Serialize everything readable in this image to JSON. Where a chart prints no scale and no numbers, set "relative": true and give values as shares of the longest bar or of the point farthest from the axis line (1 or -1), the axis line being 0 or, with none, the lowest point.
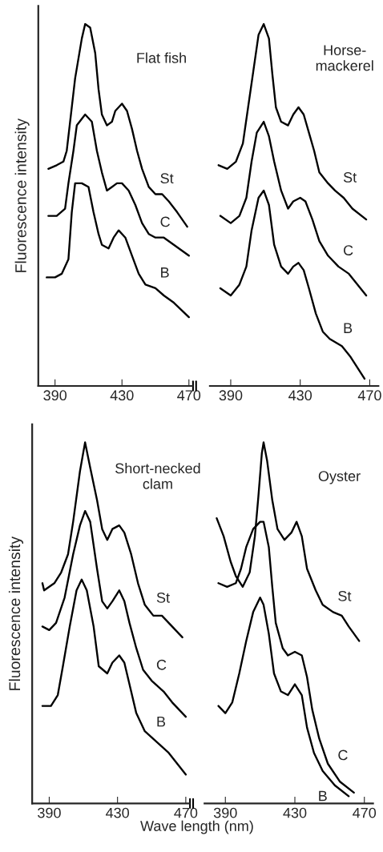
{
  "chart_data": [
    {
      "type": "line",
      "relative": true,
      "title": "Flat fish",
      "ylabel": "Fluorescence intensity",
      "xlim": [
        380,
        472
      ],
      "xticks": [
        390,
        430,
        470
      ],
      "tick_labels": "x",
      "grid": false,
      "legend": false,
      "marker": "none",
      "line_style": "solid",
      "series": [
        {
          "name": "St",
          "color": "#000000",
          "x": [
            386,
            391,
            395,
            397,
            399,
            402,
            406,
            408,
            411,
            414,
            416,
            418,
            421,
            424,
            426,
            430,
            433,
            436,
            439,
            442,
            446,
            450,
            454,
            458,
            463,
            469
          ],
          "values": [
            0.6,
            0.61,
            0.62,
            0.65,
            0.73,
            0.85,
            0.96,
            1.0,
            0.99,
            0.92,
            0.82,
            0.75,
            0.72,
            0.73,
            0.76,
            0.78,
            0.76,
            0.71,
            0.65,
            0.6,
            0.55,
            0.53,
            0.53,
            0.51,
            0.48,
            0.44
          ]
        },
        {
          "name": "C",
          "color": "#000000",
          "x": [
            386,
            391,
            396,
            398,
            401,
            403,
            408,
            412,
            415,
            418,
            421,
            424,
            427,
            430,
            434,
            438,
            442,
            446,
            450,
            455,
            461,
            470
          ],
          "values": [
            0.47,
            0.47,
            0.49,
            0.56,
            0.65,
            0.72,
            0.75,
            0.73,
            0.65,
            0.59,
            0.54,
            0.55,
            0.56,
            0.56,
            0.54,
            0.5,
            0.45,
            0.42,
            0.41,
            0.41,
            0.39,
            0.36
          ]
        },
        {
          "name": "B",
          "color": "#000000",
          "x": [
            385,
            390,
            394,
            398,
            400,
            402,
            406,
            410,
            413,
            416,
            418,
            422,
            425,
            428,
            432,
            436,
            440,
            444,
            450,
            455,
            461,
            470
          ],
          "values": [
            0.3,
            0.3,
            0.31,
            0.35,
            0.48,
            0.56,
            0.56,
            0.55,
            0.48,
            0.42,
            0.39,
            0.38,
            0.41,
            0.43,
            0.41,
            0.36,
            0.31,
            0.28,
            0.27,
            0.25,
            0.23,
            0.19
          ]
        }
      ]
    },
    {
      "type": "line",
      "relative": true,
      "title": "Horse-\nmackerel",
      "xlim": [
        378,
        475
      ],
      "xticks": [
        390,
        430,
        470
      ],
      "tick_labels": "x",
      "grid": false,
      "legend": false,
      "marker": "none",
      "line_style": "solid",
      "series": [
        {
          "name": "St",
          "color": "#000000",
          "x": [
            383,
            388,
            393,
            397,
            400,
            403,
            406,
            409,
            412,
            414,
            416,
            419,
            423,
            426,
            429,
            432,
            435,
            438,
            441,
            446,
            450,
            455,
            460,
            468
          ],
          "values": [
            0.61,
            0.6,
            0.62,
            0.67,
            0.77,
            0.87,
            0.97,
            1.0,
            0.96,
            0.86,
            0.77,
            0.73,
            0.72,
            0.75,
            0.77,
            0.75,
            0.7,
            0.65,
            0.59,
            0.56,
            0.54,
            0.52,
            0.49,
            0.46
          ]
        },
        {
          "name": "C",
          "color": "#000000",
          "x": [
            384,
            390,
            395,
            399,
            402,
            405,
            409,
            412,
            415,
            419,
            423,
            426,
            430,
            433,
            437,
            441,
            446,
            452,
            458,
            468
          ],
          "values": [
            0.47,
            0.45,
            0.47,
            0.52,
            0.62,
            0.7,
            0.73,
            0.69,
            0.62,
            0.54,
            0.49,
            0.51,
            0.52,
            0.51,
            0.46,
            0.4,
            0.36,
            0.33,
            0.31,
            0.25
          ]
        },
        {
          "name": "B",
          "color": "#000000",
          "x": [
            384,
            390,
            395,
            399,
            402,
            406,
            409,
            412,
            415,
            419,
            423,
            426,
            429,
            432,
            435,
            439,
            443,
            447,
            454,
            459,
            467
          ],
          "values": [
            0.27,
            0.25,
            0.28,
            0.33,
            0.43,
            0.52,
            0.54,
            0.5,
            0.39,
            0.33,
            0.31,
            0.33,
            0.34,
            0.32,
            0.27,
            0.2,
            0.15,
            0.13,
            0.11,
            0.08,
            0.02
          ]
        }
      ]
    },
    {
      "type": "line",
      "relative": true,
      "title": "Short-necked\nclam",
      "ylabel": "Fluorescence intensity",
      "xlabel": "Wave length (nm)",
      "xlim": [
        380,
        472
      ],
      "xticks": [
        390,
        430,
        470
      ],
      "tick_labels": "x",
      "grid": false,
      "legend": false,
      "marker": "none",
      "line_style": "solid",
      "series": [
        {
          "name": "St",
          "color": "#000000",
          "x": [
            386,
            387,
            393,
            397,
            401,
            404,
            408,
            411,
            414,
            418,
            421,
            424,
            427,
            431,
            434,
            438,
            442,
            446,
            451,
            456,
            460,
            468
          ],
          "values": [
            0.61,
            0.59,
            0.61,
            0.64,
            0.69,
            0.78,
            0.92,
            1.0,
            0.93,
            0.84,
            0.76,
            0.73,
            0.76,
            0.77,
            0.75,
            0.69,
            0.61,
            0.55,
            0.52,
            0.52,
            0.5,
            0.46
          ]
        },
        {
          "name": "C",
          "color": "#000000",
          "x": [
            386,
            390,
            394,
            399,
            404,
            408,
            411,
            414,
            418,
            421,
            424,
            427,
            431,
            434,
            437,
            441,
            445,
            450,
            457,
            462,
            470
          ],
          "values": [
            0.49,
            0.48,
            0.5,
            0.57,
            0.69,
            0.77,
            0.81,
            0.78,
            0.65,
            0.56,
            0.54,
            0.56,
            0.59,
            0.56,
            0.5,
            0.43,
            0.37,
            0.34,
            0.31,
            0.28,
            0.24
          ]
        },
        {
          "name": "B",
          "color": "#000000",
          "x": [
            386,
            391,
            395,
            398,
            402,
            406,
            409,
            412,
            416,
            419,
            424,
            427,
            431,
            434,
            437,
            441,
            446,
            453,
            460,
            470
          ],
          "values": [
            0.27,
            0.27,
            0.3,
            0.38,
            0.49,
            0.59,
            0.62,
            0.59,
            0.49,
            0.38,
            0.36,
            0.39,
            0.41,
            0.39,
            0.33,
            0.25,
            0.2,
            0.17,
            0.14,
            0.08
          ]
        }
      ]
    },
    {
      "type": "line",
      "relative": true,
      "title": "Oyster",
      "xlim": [
        378,
        475
      ],
      "xticks": [
        390,
        430,
        470
      ],
      "tick_labels": "x",
      "grid": false,
      "legend": false,
      "marker": "none",
      "line_style": "solid",
      "series": [
        {
          "name": "St",
          "color": "#000000",
          "x": [
            385,
            389,
            393,
            396,
            400,
            404,
            407,
            409,
            411,
            412,
            414,
            417,
            420,
            424,
            428,
            431,
            434,
            437,
            442,
            446,
            452,
            457,
            461,
            467
          ],
          "values": [
            0.79,
            0.74,
            0.67,
            0.63,
            0.6,
            0.64,
            0.74,
            0.85,
            0.97,
            1.0,
            0.95,
            0.84,
            0.76,
            0.73,
            0.75,
            0.78,
            0.74,
            0.65,
            0.59,
            0.55,
            0.53,
            0.52,
            0.49,
            0.45
          ]
        },
        {
          "name": "C",
          "color": "#000000",
          "x": [
            386,
            391,
            396,
            399,
            402,
            406,
            410,
            412,
            415,
            417,
            419,
            423,
            426,
            430,
            434,
            437,
            440,
            444,
            449,
            456,
            464
          ],
          "values": [
            0.61,
            0.6,
            0.61,
            0.65,
            0.71,
            0.76,
            0.78,
            0.78,
            0.71,
            0.6,
            0.5,
            0.43,
            0.41,
            0.42,
            0.41,
            0.35,
            0.26,
            0.18,
            0.11,
            0.06,
            0.03
          ]
        },
        {
          "name": "B",
          "color": "#000000",
          "x": [
            386,
            390,
            394,
            398,
            402,
            406,
            410,
            412,
            415,
            418,
            422,
            426,
            430,
            434,
            437,
            441,
            446,
            453,
            461
          ],
          "values": [
            0.27,
            0.25,
            0.28,
            0.36,
            0.45,
            0.53,
            0.57,
            0.55,
            0.47,
            0.36,
            0.31,
            0.3,
            0.33,
            0.3,
            0.21,
            0.14,
            0.09,
            0.05,
            0.02
          ]
        }
      ]
    }
  ]
}
